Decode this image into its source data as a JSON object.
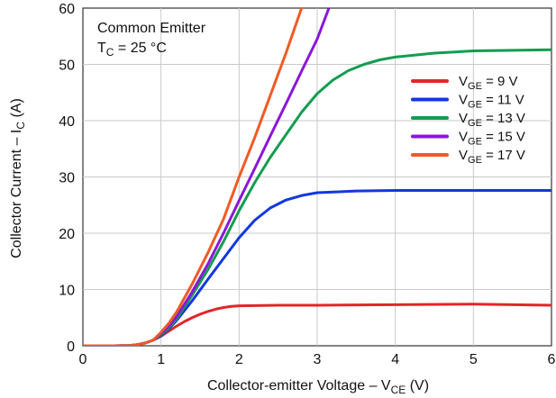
{
  "chart_data": {
    "type": "line",
    "xlabel": "Collector-emitter Voltage – VCE (V)",
    "xlabel_parts": {
      "main": "Collector-emitter Voltage – V",
      "sub": "CE",
      "unit": " (V)"
    },
    "ylabel": "Collector Current – IC (A)",
    "ylabel_parts": {
      "main": "Collector Current – I",
      "sub": "C",
      "unit": " (A)"
    },
    "xlim": [
      0,
      6
    ],
    "ylim": [
      0,
      60
    ],
    "x_ticks": [
      0,
      1,
      2,
      3,
      4,
      5,
      6
    ],
    "y_ticks": [
      0,
      10,
      20,
      30,
      40,
      50,
      60
    ],
    "grid": true,
    "legend_position": "right",
    "annotations": [
      {
        "main": "Common Emitter"
      },
      {
        "main": "T",
        "sub": "C",
        "suffix": " = 25 °C"
      }
    ],
    "series": [
      {
        "name": "VGE = 9 V",
        "label_parts": {
          "main": "V",
          "sub": "GE",
          "suffix": " = 9 V"
        },
        "color": "#e0262a",
        "x": [
          0,
          0.4,
          0.6,
          0.7,
          0.8,
          0.9,
          1.0,
          1.1,
          1.2,
          1.3,
          1.4,
          1.5,
          1.6,
          1.7,
          1.8,
          1.9,
          2.0,
          2.5,
          3.0,
          4.0,
          5.0,
          6.0
        ],
        "y": [
          0,
          0,
          0.05,
          0.2,
          0.5,
          1.0,
          1.7,
          2.6,
          3.5,
          4.3,
          5.0,
          5.6,
          6.1,
          6.5,
          6.8,
          7.0,
          7.1,
          7.2,
          7.2,
          7.3,
          7.4,
          7.2
        ]
      },
      {
        "name": "VGE = 11 V",
        "label_parts": {
          "main": "V",
          "sub": "GE",
          "suffix": " = 11 V"
        },
        "color": "#1238df",
        "x": [
          0,
          0.4,
          0.6,
          0.7,
          0.8,
          0.9,
          1.0,
          1.1,
          1.2,
          1.4,
          1.6,
          1.8,
          2.0,
          2.2,
          2.4,
          2.6,
          2.8,
          3.0,
          3.5,
          4.0,
          5.0,
          6.0
        ],
        "y": [
          0,
          0,
          0.05,
          0.2,
          0.5,
          1.0,
          1.8,
          3.0,
          4.5,
          8.0,
          11.8,
          15.5,
          19.2,
          22.3,
          24.5,
          25.9,
          26.7,
          27.2,
          27.5,
          27.6,
          27.6,
          27.6
        ]
      },
      {
        "name": "VGE = 13 V",
        "label_parts": {
          "main": "V",
          "sub": "GE",
          "suffix": " = 13 V"
        },
        "color": "#149c50",
        "x": [
          0,
          0.4,
          0.6,
          0.7,
          0.8,
          0.9,
          1.0,
          1.1,
          1.2,
          1.4,
          1.6,
          1.8,
          2.0,
          2.2,
          2.4,
          2.6,
          2.8,
          3.0,
          3.2,
          3.4,
          3.6,
          3.8,
          4.0,
          4.5,
          5.0,
          6.0
        ],
        "y": [
          0,
          0,
          0.05,
          0.2,
          0.5,
          1.0,
          2.0,
          3.2,
          4.8,
          9.0,
          13.5,
          18.5,
          24.0,
          29.0,
          33.5,
          37.5,
          41.5,
          44.8,
          47.2,
          48.9,
          50.0,
          50.8,
          51.3,
          52.0,
          52.4,
          52.6
        ]
      },
      {
        "name": "VGE = 15 V",
        "label_parts": {
          "main": "V",
          "sub": "GE",
          "suffix": " = 15 V"
        },
        "color": "#8b16d9",
        "x": [
          0,
          0.4,
          0.6,
          0.7,
          0.8,
          0.9,
          1.0,
          1.1,
          1.2,
          1.4,
          1.6,
          1.8,
          2.0,
          2.2,
          2.4,
          2.6,
          2.8,
          3.0,
          3.15
        ],
        "y": [
          0,
          0,
          0.05,
          0.2,
          0.5,
          1.0,
          2.2,
          3.5,
          5.2,
          9.6,
          14.5,
          20.0,
          25.8,
          31.5,
          37.3,
          43.0,
          48.8,
          54.5,
          60
        ]
      },
      {
        "name": "VGE = 17 V",
        "label_parts": {
          "main": "V",
          "sub": "GE",
          "suffix": " = 17 V"
        },
        "color": "#f05a25",
        "x": [
          0,
          0.4,
          0.6,
          0.7,
          0.8,
          0.9,
          1.0,
          1.1,
          1.2,
          1.4,
          1.6,
          1.8,
          2.0,
          2.2,
          2.4,
          2.6,
          2.8
        ],
        "y": [
          0,
          0,
          0.05,
          0.2,
          0.5,
          1.0,
          2.4,
          4.0,
          6.0,
          11.0,
          16.5,
          22.5,
          30.0,
          37.0,
          44.5,
          52.0,
          60
        ]
      }
    ]
  }
}
